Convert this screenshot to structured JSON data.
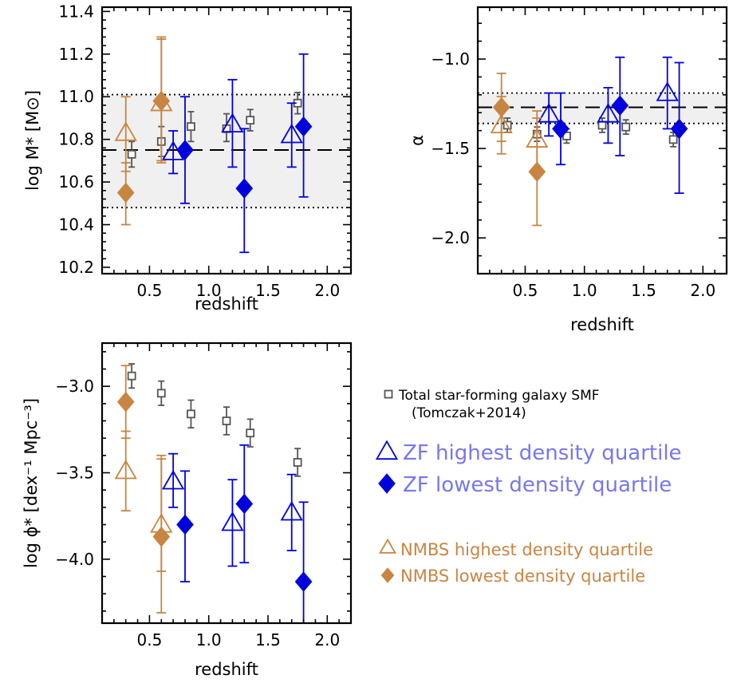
{
  "chart_data": [
    {
      "type": "scatter",
      "panel": "top-left",
      "xlabel": "redshift",
      "ylabel": "log M* [M⊙]",
      "xlim": [
        0.1,
        2.2
      ],
      "ylim": [
        10.17,
        11.42
      ],
      "xticks": [
        "0.5",
        "1.0",
        "1.5",
        "2.0"
      ],
      "yticks": [
        "10.2",
        "10.4",
        "10.6",
        "10.8",
        "11.0",
        "11.2",
        "11.4"
      ],
      "band": [
        10.48,
        11.01
      ],
      "mean_line": 10.75,
      "series": [
        {
          "name": "Total star-forming galaxy SMF",
          "marker": "square",
          "color": "#555555",
          "points": [
            [
              0.35,
              10.73,
              10.67,
              10.79
            ],
            [
              0.6,
              10.79,
              10.72,
              10.86
            ],
            [
              0.85,
              10.86,
              10.79,
              10.93
            ],
            [
              1.15,
              10.85,
              10.79,
              10.92
            ],
            [
              1.35,
              10.89,
              10.84,
              10.94
            ],
            [
              1.75,
              10.97,
              10.92,
              11.02
            ]
          ]
        },
        {
          "name": "ZF highest density quartile",
          "marker": "triangle",
          "color": "#0000dd",
          "points": [
            [
              0.7,
              10.74,
              10.64,
              10.84
            ],
            [
              1.2,
              10.87,
              10.67,
              11.08
            ],
            [
              1.7,
              10.82,
              10.67,
              10.97
            ]
          ]
        },
        {
          "name": "ZF lowest density quartile",
          "marker": "diamond",
          "color": "#0000dd",
          "points": [
            [
              0.8,
              10.75,
              10.5,
              11.0
            ],
            [
              1.3,
              10.57,
              10.27,
              10.85
            ],
            [
              1.8,
              10.86,
              10.53,
              11.2
            ]
          ]
        },
        {
          "name": "NMBS highest density quartile",
          "marker": "triangle",
          "color": "#c88541",
          "points": [
            [
              0.3,
              10.83,
              10.65,
              11.0
            ],
            [
              0.6,
              10.97,
              10.7,
              11.28
            ]
          ]
        },
        {
          "name": "NMBS lowest density quartile",
          "marker": "diamond",
          "color": "#c88541",
          "points": [
            [
              0.3,
              10.55,
              10.4,
              10.69
            ],
            [
              0.6,
              10.98,
              10.69,
              11.27
            ]
          ]
        }
      ]
    },
    {
      "type": "scatter",
      "panel": "top-right",
      "xlabel": "redshift",
      "ylabel": "α",
      "xlim": [
        0.1,
        2.2
      ],
      "ylim": [
        -2.2,
        -0.71
      ],
      "xticks": [
        "0.5",
        "1.0",
        "1.5",
        "2.0"
      ],
      "yticks": [
        "−2.0",
        "−1.5",
        "−1.0"
      ],
      "ytick_values": [
        -2.0,
        -1.5,
        -1.0
      ],
      "band": [
        -1.36,
        -1.19
      ],
      "mean_line": -1.27,
      "series": [
        {
          "name": "Total star-forming galaxy SMF",
          "marker": "square",
          "color": "#555555",
          "points": [
            [
              0.35,
              -1.37,
              -1.41,
              -1.33
            ],
            [
              0.6,
              -1.42,
              -1.46,
              -1.38
            ],
            [
              0.85,
              -1.43,
              -1.47,
              -1.39
            ],
            [
              1.15,
              -1.37,
              -1.41,
              -1.33
            ],
            [
              1.35,
              -1.38,
              -1.42,
              -1.34
            ],
            [
              1.75,
              -1.45,
              -1.49,
              -1.41
            ]
          ]
        },
        {
          "name": "ZF highest density quartile",
          "marker": "triangle",
          "color": "#0000dd",
          "points": [
            [
              0.7,
              -1.31,
              -1.43,
              -1.19
            ],
            [
              1.2,
              -1.31,
              -1.47,
              -1.16
            ],
            [
              1.7,
              -1.19,
              -1.39,
              -0.99
            ]
          ]
        },
        {
          "name": "ZF lowest density quartile",
          "marker": "diamond",
          "color": "#0000dd",
          "points": [
            [
              0.8,
              -1.39,
              -1.59,
              -1.19
            ],
            [
              1.3,
              -1.26,
              -1.54,
              -0.99
            ],
            [
              1.8,
              -1.39,
              -1.75,
              -1.02
            ]
          ]
        },
        {
          "name": "NMBS highest density quartile",
          "marker": "triangle",
          "color": "#c88541",
          "points": [
            [
              0.3,
              -1.37,
              -1.53,
              -1.21
            ],
            [
              0.6,
              -1.45,
              -1.61,
              -1.29
            ]
          ]
        },
        {
          "name": "NMBS lowest density quartile",
          "marker": "diamond",
          "color": "#c88541",
          "points": [
            [
              0.3,
              -1.27,
              -1.46,
              -1.08
            ],
            [
              0.6,
              -1.63,
              -1.93,
              -1.33
            ]
          ]
        }
      ]
    },
    {
      "type": "scatter",
      "panel": "bottom-left",
      "xlabel": "redshift",
      "ylabel": "log ϕ* [dex⁻¹ Mpc⁻³]",
      "xlim": [
        0.1,
        2.2
      ],
      "ylim": [
        -4.37,
        -2.75
      ],
      "xticks": [
        "0.5",
        "1.0",
        "1.5",
        "2.0"
      ],
      "yticks": [
        "−4.0",
        "−3.5",
        "−3.0"
      ],
      "ytick_values": [
        -4.0,
        -3.5,
        -3.0
      ],
      "series": [
        {
          "name": "Total star-forming galaxy SMF",
          "marker": "square",
          "color": "#555555",
          "points": [
            [
              0.35,
              -2.94,
              -3.01,
              -2.87
            ],
            [
              0.6,
              -3.04,
              -3.11,
              -2.97
            ],
            [
              0.85,
              -3.16,
              -3.24,
              -3.08
            ],
            [
              1.15,
              -3.2,
              -3.28,
              -3.12
            ],
            [
              1.35,
              -3.27,
              -3.35,
              -3.19
            ],
            [
              1.75,
              -3.44,
              -3.52,
              -3.36
            ]
          ]
        },
        {
          "name": "ZF highest density quartile",
          "marker": "triangle",
          "color": "#0000dd",
          "points": [
            [
              0.7,
              -3.55,
              -3.7,
              -3.39
            ],
            [
              1.2,
              -3.79,
              -4.04,
              -3.54
            ],
            [
              1.7,
              -3.73,
              -3.95,
              -3.51
            ]
          ]
        },
        {
          "name": "ZF lowest density quartile",
          "marker": "diamond",
          "color": "#0000dd",
          "points": [
            [
              0.8,
              -3.8,
              -4.13,
              -3.49
            ],
            [
              1.3,
              -3.68,
              -4.02,
              -3.34
            ],
            [
              1.8,
              -4.13,
              -4.6,
              -3.67
            ]
          ]
        },
        {
          "name": "NMBS highest density quartile",
          "marker": "triangle",
          "color": "#c88541",
          "points": [
            [
              0.3,
              -3.49,
              -3.72,
              -3.26
            ],
            [
              0.6,
              -3.8,
              -4.07,
              -3.42
            ]
          ]
        },
        {
          "name": "NMBS lowest density quartile",
          "marker": "diamond",
          "color": "#c88541",
          "points": [
            [
              0.3,
              -3.09,
              -3.3,
              -2.88
            ],
            [
              0.6,
              -3.87,
              -4.31,
              -3.4
            ]
          ]
        }
      ]
    }
  ],
  "legend": {
    "placement": "bottom-right",
    "entries": [
      {
        "marker": "square",
        "line1": "Total star-forming galaxy SMF",
        "line2": "(Tomczak+2014)",
        "text_color": "#000000",
        "marker_color": "#555555"
      },
      {
        "marker": "triangle",
        "line1": "ZF highest density quartile",
        "text_color": "#7777ee",
        "marker_color": "#0000dd"
      },
      {
        "marker": "diamond",
        "line1": "ZF lowest density quartile",
        "text_color": "#7777ee",
        "marker_color": "#0000dd"
      },
      {
        "marker": "triangle",
        "line1": "NMBS highest density quartile",
        "text_color": "#c88541",
        "marker_color": "#c88541"
      },
      {
        "marker": "diamond",
        "line1": "NMBS lowest density quartile",
        "text_color": "#c88541",
        "marker_color": "#c88541"
      }
    ]
  }
}
